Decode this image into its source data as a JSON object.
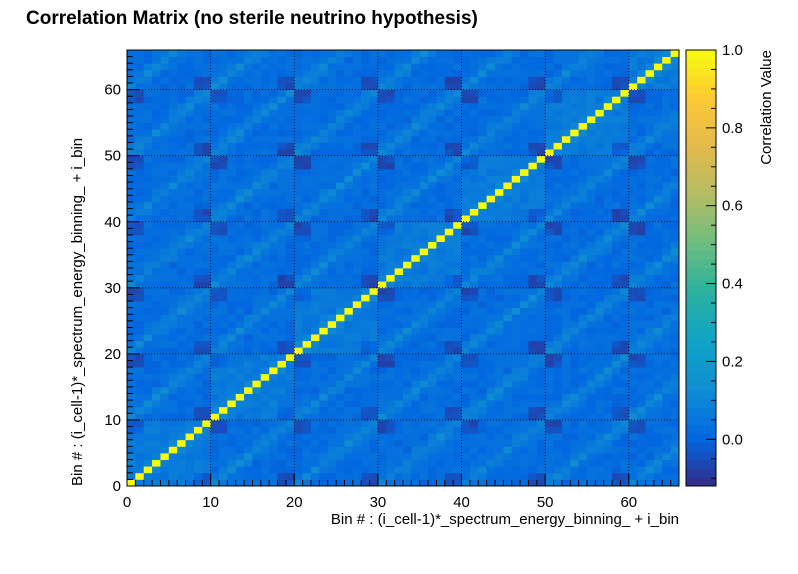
{
  "chart_data": {
    "type": "heatmap",
    "title": "Correlation Matrix (no sterile neutrino hypothesis)",
    "xlabel": "Bin # : (i_cell-1)*_spectrum_energy_binning_ + i_bin",
    "ylabel": "Bin # : (i_cell-1)*_spectrum_energy_binning_ + i_bin",
    "colorbar_label": "Correlation Value",
    "x_range": [
      0,
      66
    ],
    "y_range": [
      0,
      66
    ],
    "n_bins": 66,
    "block_size": 10,
    "x_ticks": [
      0,
      10,
      20,
      30,
      40,
      50,
      60
    ],
    "y_ticks": [
      0,
      10,
      20,
      30,
      40,
      50,
      60
    ],
    "colorbar_range": [
      -0.12,
      1.0
    ],
    "colorbar_ticks": [
      "0.0",
      "0.2",
      "0.4",
      "0.6",
      "0.8",
      "1.0"
    ],
    "diagonal_value": 1.0,
    "off_diagonal_range": [
      -0.08,
      0.16
    ],
    "grid": true,
    "palette": [
      "#352a87",
      "#0268e1",
      "#108ed2",
      "#0fa4c7",
      "#2ab19f",
      "#6cbd80",
      "#b4bd65",
      "#e2b94b",
      "#fdc935",
      "#f9fb0e"
    ]
  }
}
